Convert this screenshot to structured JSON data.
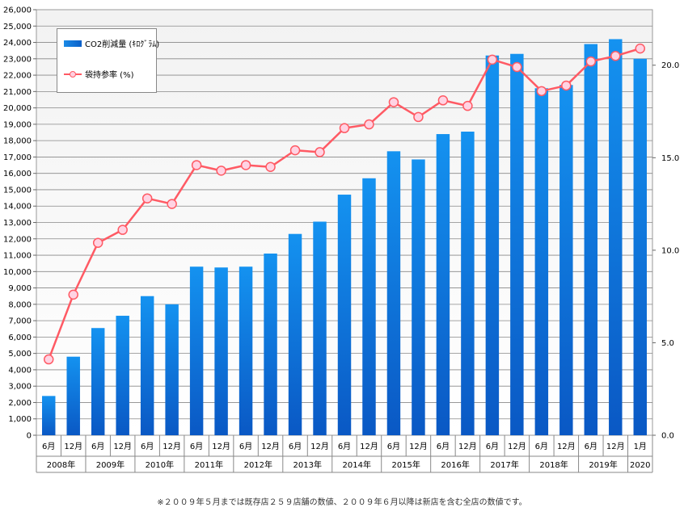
{
  "chart_data": {
    "type": "bar",
    "categories": [
      "6月",
      "12月",
      "6月",
      "12月",
      "6月",
      "12月",
      "6月",
      "12月",
      "6月",
      "12月",
      "6月",
      "12月",
      "6月",
      "12月",
      "6月",
      "12月",
      "6月",
      "12月",
      "6月",
      "12月",
      "6月",
      "12月",
      "6月",
      "12月",
      "1月"
    ],
    "year_groups": [
      {
        "label": "2008年",
        "span": 2
      },
      {
        "label": "2009年",
        "span": 2
      },
      {
        "label": "2010年",
        "span": 2
      },
      {
        "label": "2011年",
        "span": 2
      },
      {
        "label": "2012年",
        "span": 2
      },
      {
        "label": "2013年",
        "span": 2
      },
      {
        "label": "2014年",
        "span": 2
      },
      {
        "label": "2015年",
        "span": 2
      },
      {
        "label": "2016年",
        "span": 2
      },
      {
        "label": "2017年",
        "span": 2
      },
      {
        "label": "2018年",
        "span": 2
      },
      {
        "label": "2019年",
        "span": 2
      },
      {
        "label": "2020",
        "span": 1
      }
    ],
    "series": [
      {
        "name": "CO2削減量 (ｷﾛｸﾞﾗﾑ)",
        "type": "bar",
        "axis": "left",
        "color": "#0a6fd8",
        "values": [
          2400,
          4800,
          6550,
          7300,
          8500,
          8000,
          10300,
          10250,
          10300,
          11100,
          12300,
          13050,
          14700,
          15700,
          17350,
          16850,
          18400,
          18550,
          23200,
          23300,
          21200,
          21400,
          23900,
          24200,
          23000
        ]
      },
      {
        "name": "袋持参率 (%)",
        "type": "line",
        "axis": "right",
        "color": "#ff5a64",
        "values": [
          4.1,
          7.6,
          10.4,
          11.1,
          12.8,
          12.5,
          14.6,
          14.3,
          14.6,
          14.5,
          15.4,
          15.3,
          16.6,
          16.8,
          18.0,
          17.2,
          18.1,
          17.8,
          20.3,
          19.9,
          18.6,
          18.9,
          20.2,
          20.5,
          20.9
        ]
      }
    ],
    "y_left": {
      "min": 0,
      "max": 26000,
      "step": 1000
    },
    "y_right": {
      "min": 0,
      "max": 23,
      "ticks": [
        0.0,
        5.0,
        10.0,
        15.0,
        20.0
      ]
    },
    "grid": true,
    "legend": "top-left"
  },
  "legend_labels": {
    "bar": "CO2削減量 (ｷﾛｸﾞﾗﾑ)",
    "line": "袋持参率 (%)"
  },
  "footnote": "※２００９年５月までは既存店２５９店舗の数値、２００９年６月以降は新店を含む全店の数値です。"
}
